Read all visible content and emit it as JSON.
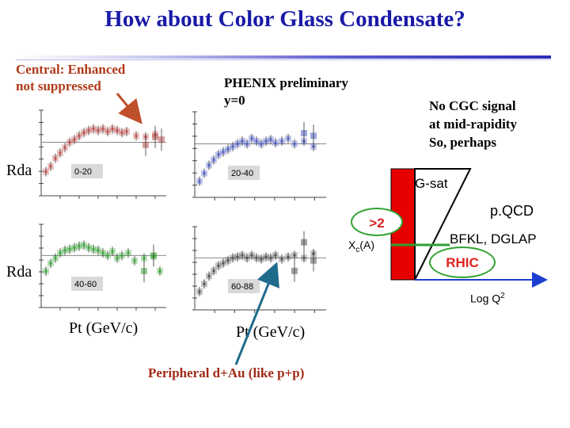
{
  "slide": {
    "title": "How about Color Glass Condensate?",
    "central_line1": "Central: Enhanced",
    "central_line2": "not suppressed",
    "phenix_line1": "PHENIX preliminary",
    "phenix_line2": "y=0",
    "nocgc_line1": "No CGC signal",
    "nocgc_line2": "at mid-rapidity",
    "nocgc_line3": "So, perhaps",
    "rda_top": "Rda",
    "rda_bottom": "Rda",
    "pt_left": "Pt (GeV/c)",
    "pt_right": "Pt (GeV/c)",
    "peripheral": "Peripheral d+Au (like p+p)"
  },
  "panels": [
    {
      "label": "0-20",
      "color": "#c0504d"
    },
    {
      "label": "20-40",
      "color": "#4f5fc8"
    },
    {
      "label": "40-60",
      "color": "#3aa83a"
    },
    {
      "label": "60-88",
      "color": "#555555"
    }
  ],
  "diagram": {
    "gsat": "G-sat",
    "pqcd": "p.QCD",
    "bfkl": "BFKL, DGLAP",
    "xc_main": "X",
    "xc_sub": "c",
    "xc_tail": "(A)",
    "gt2": ">2",
    "rhic": "RHIC",
    "logq_main": "Log Q",
    "logq_sup": "2"
  }
}
